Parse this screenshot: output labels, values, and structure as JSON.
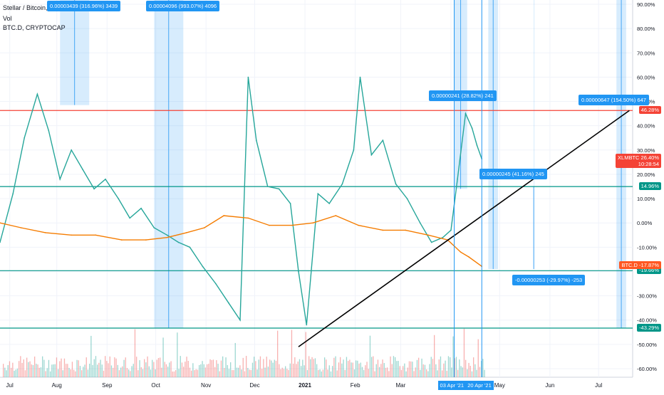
{
  "header": {
    "title": "Stellar / Bitcoin, 1D, BINANCE",
    "vol_label": "Vol",
    "overlay_label": "BTC.D, CRYPTOCAP"
  },
  "chart_data": {
    "type": "line",
    "x_ticks": [
      "Jul",
      "Aug",
      "Sep",
      "Oct",
      "Nov",
      "Dec",
      "2021",
      "Feb",
      "Mar",
      "Apr",
      "May",
      "Jun",
      "Jul"
    ],
    "y_ticks": [
      "90.00%",
      "80.00%",
      "70.00%",
      "60.00%",
      "50.00%",
      "40.00%",
      "30.00%",
      "20.00%",
      "10.00%",
      "0.00%",
      "-10.00%",
      "-20.00%",
      "-30.00%",
      "-40.00%",
      "-50.00%",
      "-60.00%"
    ],
    "ylim": [
      -62,
      91
    ],
    "series": [
      {
        "name": "XLMBTC",
        "color": "#26a69a",
        "x": [
          "2020-06-27",
          "2020-07-05",
          "2020-07-12",
          "2020-07-20",
          "2020-07-27",
          "2020-08-03",
          "2020-08-10",
          "2020-08-17",
          "2020-08-24",
          "2020-08-31",
          "2020-09-08",
          "2020-09-15",
          "2020-09-22",
          "2020-09-30",
          "2020-10-08",
          "2020-10-15",
          "2020-10-22",
          "2020-10-30",
          "2020-11-07",
          "2020-11-15",
          "2020-11-22",
          "2020-11-27",
          "2020-12-02",
          "2020-12-09",
          "2020-12-16",
          "2020-12-23",
          "2020-12-28",
          "2021-01-02",
          "2021-01-09",
          "2021-01-16",
          "2021-01-24",
          "2021-01-31",
          "2021-02-04",
          "2021-02-11",
          "2021-02-18",
          "2021-02-26",
          "2021-03-05",
          "2021-03-13",
          "2021-03-20",
          "2021-03-27",
          "2021-04-01",
          "2021-04-05",
          "2021-04-10",
          "2021-04-14",
          "2021-04-17",
          "2021-04-20"
        ],
        "values": [
          -8,
          12,
          35,
          53,
          38,
          18,
          30,
          22,
          14,
          18,
          10,
          2,
          6,
          -2,
          -5,
          -8,
          -10,
          -18,
          -25,
          -33,
          -40,
          60,
          34,
          15,
          14,
          8,
          -20,
          -42,
          12,
          8,
          16,
          30,
          60,
          28,
          34,
          16,
          10,
          0,
          -8,
          -6,
          -3,
          18,
          45,
          39,
          32,
          26.4
        ]
      },
      {
        "name": "BTC.D",
        "color": "#f57c00",
        "x": [
          "2020-06-27",
          "2020-07-10",
          "2020-07-25",
          "2020-08-10",
          "2020-08-25",
          "2020-09-10",
          "2020-09-25",
          "2020-10-08",
          "2020-10-20",
          "2020-10-31",
          "2020-11-12",
          "2020-11-27",
          "2020-12-10",
          "2020-12-24",
          "2021-01-06",
          "2021-01-20",
          "2021-02-03",
          "2021-02-18",
          "2021-03-04",
          "2021-03-18",
          "2021-03-30",
          "2021-04-07",
          "2021-04-12",
          "2021-04-20"
        ],
        "values": [
          0,
          -2,
          -4,
          -5,
          -5,
          -7,
          -7,
          -6,
          -4,
          -2,
          3,
          2,
          -1,
          -1,
          0,
          3,
          -1,
          -3,
          -3,
          -5,
          -7,
          -12,
          -14,
          -17.87
        ]
      }
    ],
    "horizontal_levels": [
      {
        "label": "46.28%",
        "value": 46.28,
        "color": "#f44336"
      },
      {
        "label": "14.96%",
        "value": 14.96,
        "color": "#009688"
      },
      {
        "label": "-19.66%",
        "value": -19.66,
        "color": "#009688"
      },
      {
        "label": "-43.29%",
        "value": -43.29,
        "color": "#009688"
      }
    ],
    "price_tags": [
      {
        "label": "XLMBTC",
        "value_label": "26.40%",
        "time_label": "10:28:54",
        "value": 26.4,
        "color": "#f44336"
      },
      {
        "label": "BTC.D",
        "value_label": "-17.87%",
        "value": -17.87,
        "color": "#ff5722"
      }
    ],
    "annotations": [
      {
        "text": "0.00003439 (316.96%) 3439",
        "x_start": "2020-08-03",
        "x_end": "2020-08-21",
        "y_bottom": 48.5
      },
      {
        "text": "0.00004096 (993.07%) 4096",
        "x_start": "2020-09-30",
        "x_end": "2020-10-18",
        "y_bottom": -43.3
      },
      {
        "text": "0.00000241 (28.82%) 241",
        "x_start": "2021-04-03",
        "x_end": "2021-04-11",
        "y_bottom": 14.0
      },
      {
        "text": "0.00000245 (41.16%) 245",
        "x_start": "2021-04-24",
        "x_end": "2021-04-30",
        "y_bottom": -19.0
      },
      {
        "text": "-0.00000253 (-29.97%) -253",
        "x_start": "2021-05-22",
        "x_end": "2021-05-22",
        "y_bottom": -19.0
      },
      {
        "text": "0.00000647 (154.50%) 647",
        "x_start": "2021-07-12",
        "x_end": "2021-07-18",
        "y_bottom": -43.3
      }
    ],
    "trendline": {
      "x_start": "2020-12-28",
      "y_start": -51,
      "x_end": "2021-07-20",
      "y_end": 46.28
    },
    "date_markers": [
      "03 Apr '21",
      "20 Apr '21"
    ],
    "legend": "none",
    "grid": true
  }
}
